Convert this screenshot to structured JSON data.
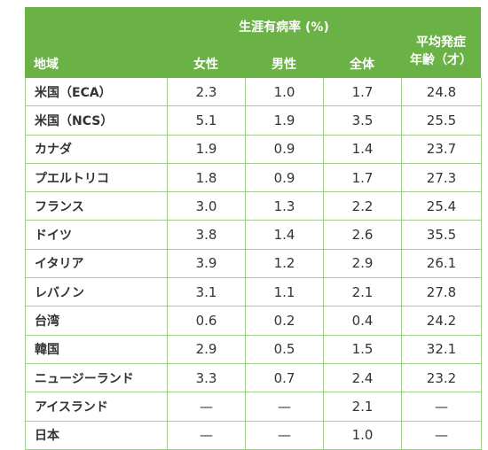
{
  "header": {
    "group": "生涯有病率 (%)",
    "region": "地域",
    "female": "女性",
    "male": "男性",
    "total": "全体",
    "onset_line1": "平均発症",
    "onset_line2": "年齢（才）"
  },
  "rows": [
    {
      "region": "米国（ECA）",
      "female": "2.3",
      "male": "1.0",
      "total": "1.7",
      "onset": "24.8"
    },
    {
      "region": "米国（NCS）",
      "female": "5.1",
      "male": "1.9",
      "total": "3.5",
      "onset": "25.5"
    },
    {
      "region": "カナダ",
      "female": "1.9",
      "male": "0.9",
      "total": "1.4",
      "onset": "23.7"
    },
    {
      "region": "プエルトリコ",
      "female": "1.8",
      "male": "0.9",
      "total": "1.7",
      "onset": "27.3"
    },
    {
      "region": "フランス",
      "female": "3.0",
      "male": "1.3",
      "total": "2.2",
      "onset": "25.4"
    },
    {
      "region": "ドイツ",
      "female": "3.8",
      "male": "1.4",
      "total": "2.6",
      "onset": "35.5"
    },
    {
      "region": "イタリア",
      "female": "3.9",
      "male": "1.2",
      "total": "2.9",
      "onset": "26.1"
    },
    {
      "region": "レバノン",
      "female": "3.1",
      "male": "1.1",
      "total": "2.1",
      "onset": "27.8"
    },
    {
      "region": "台湾",
      "female": "0.6",
      "male": "0.2",
      "total": "0.4",
      "onset": "24.2"
    },
    {
      "region": "韓国",
      "female": "2.9",
      "male": "0.5",
      "total": "1.5",
      "onset": "32.1"
    },
    {
      "region": "ニュージーランド",
      "female": "3.3",
      "male": "0.7",
      "total": "2.4",
      "onset": "23.2"
    },
    {
      "region": "アイスランド",
      "female": "—",
      "male": "—",
      "total": "2.1",
      "onset": "—"
    },
    {
      "region": "日本",
      "female": "—",
      "male": "—",
      "total": "1.0",
      "onset": "—"
    }
  ]
}
